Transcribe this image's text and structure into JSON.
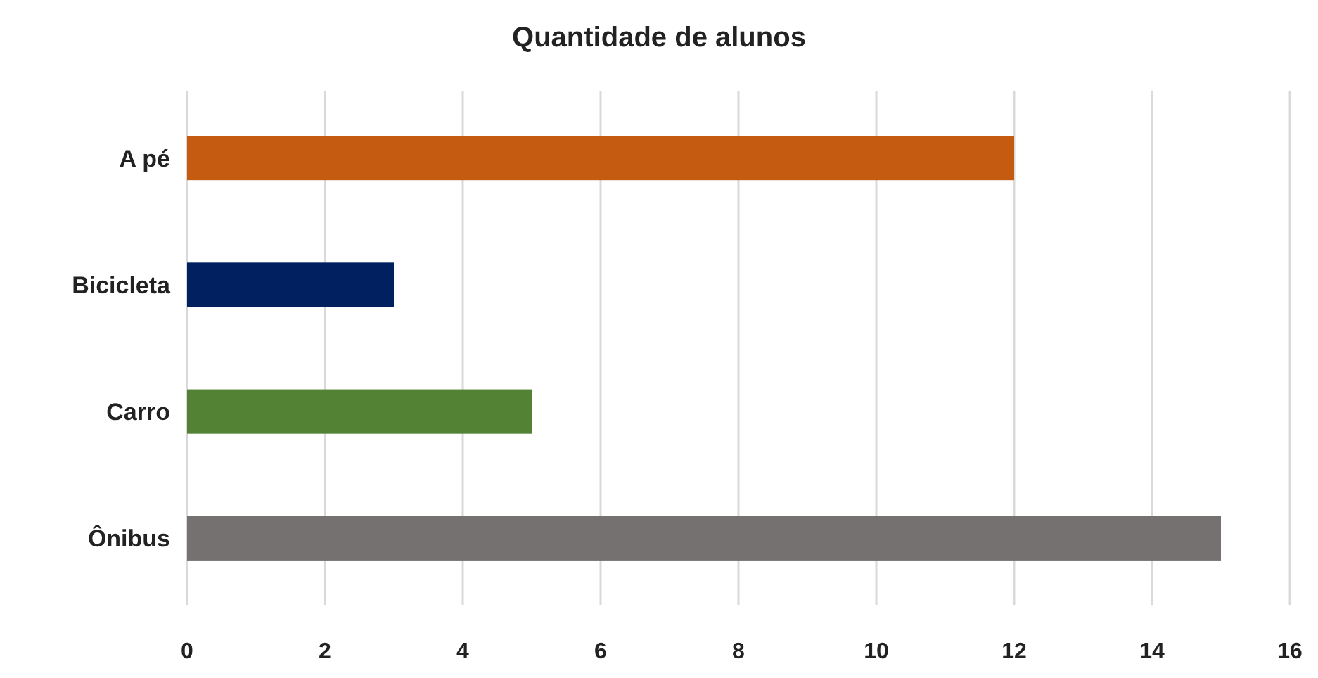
{
  "chart_data": {
    "type": "bar",
    "orientation": "horizontal",
    "title": "Quantidade de alunos",
    "categories": [
      "A pé",
      "Bicicleta",
      "Carro",
      "Ônibus"
    ],
    "values": [
      12,
      3,
      5,
      15
    ],
    "colors": [
      "#c55a11",
      "#002060",
      "#548235",
      "#767171"
    ],
    "xlim": [
      0,
      16
    ],
    "xticks": [
      0,
      2,
      4,
      6,
      8,
      10,
      12,
      14,
      16
    ],
    "grid": "x"
  }
}
